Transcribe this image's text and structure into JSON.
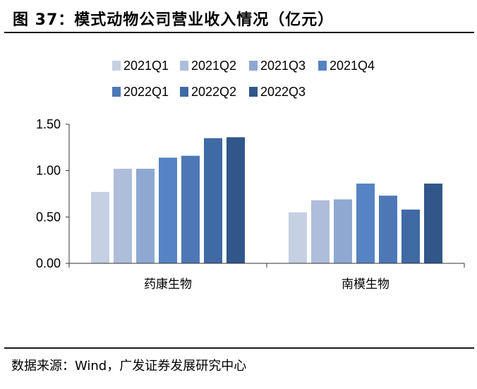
{
  "figure": {
    "title": "图 37：模式动物公司营业收入情况（亿元）",
    "source": "数据来源：Wind，广发证券发展研究中心"
  },
  "chart_data": {
    "type": "bar",
    "categories": [
      "药康生物",
      "南模生物"
    ],
    "series": [
      {
        "name": "2021Q1",
        "color": "#c5d0e2",
        "values": [
          0.77,
          0.55
        ]
      },
      {
        "name": "2021Q2",
        "color": "#aebdd9",
        "values": [
          1.02,
          0.68
        ]
      },
      {
        "name": "2021Q3",
        "color": "#8ea8d1",
        "values": [
          1.02,
          0.69
        ]
      },
      {
        "name": "2021Q4",
        "color": "#5683c3",
        "values": [
          1.14,
          0.86
        ]
      },
      {
        "name": "2022Q1",
        "color": "#4d78b5",
        "values": [
          1.16,
          0.73
        ]
      },
      {
        "name": "2022Q2",
        "color": "#3f6aa4",
        "values": [
          1.35,
          0.58
        ]
      },
      {
        "name": "2022Q3",
        "color": "#30568a",
        "values": [
          1.36,
          0.86
        ]
      }
    ],
    "yticks": [
      "0.00",
      "0.50",
      "1.00",
      "1.50"
    ],
    "ylim": [
      0,
      1.5
    ],
    "legend_position": "top",
    "grid": false
  }
}
